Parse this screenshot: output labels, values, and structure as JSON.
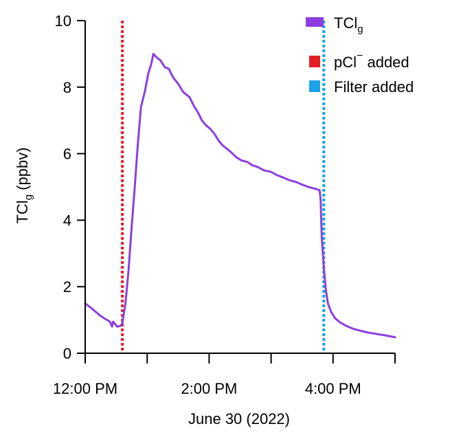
{
  "chart_data": {
    "type": "line",
    "xlabel": "June 30 (2022)",
    "ylabel": {
      "main": "TCl",
      "sub": "g",
      "unit": " (ppbv)"
    },
    "xlim": [
      "12:00",
      "17:00"
    ],
    "ylim": [
      0,
      10
    ],
    "x_ticks": [
      "12:00",
      "13:00",
      "14:00",
      "15:00",
      "16:00",
      "17:00"
    ],
    "x_tick_labels": [
      {
        "at": "12:00",
        "label": "12:00 PM"
      },
      {
        "at": "14:00",
        "label": "2:00 PM"
      },
      {
        "at": "16:00",
        "label": "4:00 PM"
      }
    ],
    "y_ticks": [
      0,
      2,
      4,
      6,
      8,
      10
    ],
    "grid": false,
    "legend_position": "top-right",
    "series": [
      {
        "name": {
          "main": "TCl",
          "sub": "g"
        },
        "color": "#8b3fe0",
        "points": [
          [
            "12:00",
            1.5
          ],
          [
            "12:05",
            1.38
          ],
          [
            "12:10",
            1.25
          ],
          [
            "12:15",
            1.12
          ],
          [
            "12:20",
            1.02
          ],
          [
            "12:24",
            0.95
          ],
          [
            "12:26",
            0.8
          ],
          [
            "12:27",
            0.95
          ],
          [
            "12:29",
            0.88
          ],
          [
            "12:31",
            0.8
          ],
          [
            "12:34",
            0.82
          ],
          [
            "12:36",
            0.9
          ],
          [
            "12:39",
            1.5
          ],
          [
            "12:42",
            2.5
          ],
          [
            "12:45",
            3.8
          ],
          [
            "12:48",
            5.0
          ],
          [
            "12:51",
            6.3
          ],
          [
            "12:54",
            7.4
          ],
          [
            "12:58",
            7.9
          ],
          [
            "13:01",
            8.4
          ],
          [
            "13:04",
            8.7
          ],
          [
            "13:06",
            9.0
          ],
          [
            "13:09",
            8.9
          ],
          [
            "13:13",
            8.8
          ],
          [
            "13:17",
            8.6
          ],
          [
            "13:21",
            8.55
          ],
          [
            "13:25",
            8.3
          ],
          [
            "13:30",
            8.1
          ],
          [
            "13:35",
            7.85
          ],
          [
            "13:41",
            7.7
          ],
          [
            "13:45",
            7.45
          ],
          [
            "13:49",
            7.25
          ],
          [
            "13:53",
            7.0
          ],
          [
            "13:57",
            6.85
          ],
          [
            "14:01",
            6.75
          ],
          [
            "14:05",
            6.6
          ],
          [
            "14:09",
            6.4
          ],
          [
            "14:13",
            6.25
          ],
          [
            "14:17",
            6.15
          ],
          [
            "14:21",
            6.05
          ],
          [
            "14:26",
            5.9
          ],
          [
            "14:31",
            5.8
          ],
          [
            "14:37",
            5.75
          ],
          [
            "14:42",
            5.65
          ],
          [
            "14:47",
            5.6
          ],
          [
            "14:53",
            5.5
          ],
          [
            "15:00",
            5.45
          ],
          [
            "15:06",
            5.35
          ],
          [
            "15:12",
            5.28
          ],
          [
            "15:18",
            5.2
          ],
          [
            "15:24",
            5.15
          ],
          [
            "15:30",
            5.07
          ],
          [
            "15:36",
            5.0
          ],
          [
            "15:42",
            4.95
          ],
          [
            "15:47",
            4.9
          ],
          [
            "15:48",
            4.6
          ],
          [
            "15:49",
            3.5
          ],
          [
            "15:51",
            2.6
          ],
          [
            "15:53",
            1.9
          ],
          [
            "15:55",
            1.5
          ],
          [
            "15:58",
            1.25
          ],
          [
            "16:02",
            1.05
          ],
          [
            "16:07",
            0.92
          ],
          [
            "16:13",
            0.82
          ],
          [
            "16:19",
            0.74
          ],
          [
            "16:26",
            0.68
          ],
          [
            "16:34",
            0.62
          ],
          [
            "16:42",
            0.58
          ],
          [
            "16:50",
            0.54
          ],
          [
            "17:00",
            0.48
          ]
        ]
      }
    ],
    "markers": [
      {
        "name": {
          "main": "pCl",
          "sup": "−",
          "tail": " added"
        },
        "x": "12:36",
        "color": "#e51e25",
        "style": "dotted"
      },
      {
        "name": {
          "main": "Filter added"
        },
        "x": "15:51",
        "color": "#1aa3e8",
        "style": "dotted"
      }
    ]
  }
}
